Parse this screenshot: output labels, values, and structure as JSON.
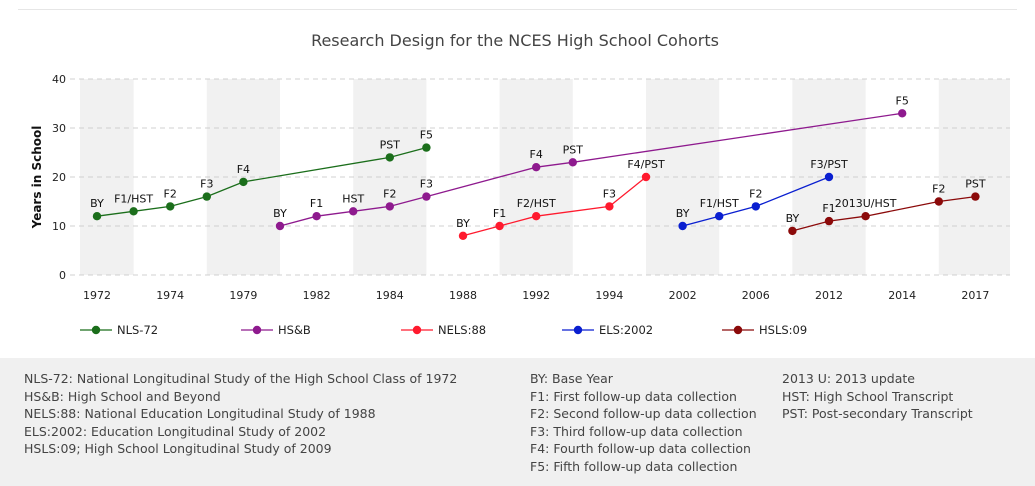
{
  "chart_data": {
    "type": "line",
    "title": "Research Design for the NCES High School Cohorts",
    "xlabel": "",
    "ylabel": "Years in School",
    "ylim": [
      0,
      40
    ],
    "yticks": [
      0,
      10,
      20,
      30,
      40
    ],
    "grid": true,
    "legend_position": "bottom",
    "categories": [
      "1972",
      "1974",
      "1979",
      "1982",
      "1984",
      "1988",
      "1992",
      "1994",
      "2002",
      "2006",
      "2012",
      "2014",
      "2017"
    ],
    "x_note": "x values are positions on the categorical axis (category index, half steps between ticks)",
    "series": [
      {
        "name": "NLS-72",
        "color": "#1b6e1b",
        "points": [
          {
            "x": 0,
            "y": 12,
            "label": "BY"
          },
          {
            "x": 0.5,
            "y": 13,
            "label": "F1/HST"
          },
          {
            "x": 1,
            "y": 14,
            "label": "F2"
          },
          {
            "x": 1.5,
            "y": 16,
            "label": "F3"
          },
          {
            "x": 2,
            "y": 19,
            "label": "F4"
          },
          {
            "x": 4,
            "y": 24,
            "label": "PST"
          },
          {
            "x": 4.5,
            "y": 26,
            "label": "F5"
          }
        ]
      },
      {
        "name": "HS&B",
        "color": "#8e1a8e",
        "points": [
          {
            "x": 2.5,
            "y": 10,
            "label": "BY"
          },
          {
            "x": 3,
            "y": 12,
            "label": "F1"
          },
          {
            "x": 3.5,
            "y": 13,
            "label": "HST"
          },
          {
            "x": 4,
            "y": 14,
            "label": "F2"
          },
          {
            "x": 4.5,
            "y": 16,
            "label": "F3"
          },
          {
            "x": 6,
            "y": 22,
            "label": "F4"
          },
          {
            "x": 6.5,
            "y": 23,
            "label": "PST"
          },
          {
            "x": 11,
            "y": 33,
            "label": "F5"
          }
        ]
      },
      {
        "name": "NELS:88",
        "color": "#ff1a2e",
        "points": [
          {
            "x": 5,
            "y": 8,
            "label": "BY"
          },
          {
            "x": 5.5,
            "y": 10,
            "label": "F1"
          },
          {
            "x": 6,
            "y": 12,
            "label": "F2/HST"
          },
          {
            "x": 7,
            "y": 14,
            "label": "F3"
          },
          {
            "x": 7.5,
            "y": 20,
            "label": "F4/PST"
          }
        ]
      },
      {
        "name": "ELS:2002",
        "color": "#0a1fd0",
        "points": [
          {
            "x": 8,
            "y": 10,
            "label": "BY"
          },
          {
            "x": 8.5,
            "y": 12,
            "label": "F1/HST"
          },
          {
            "x": 9,
            "y": 14,
            "label": "F2"
          },
          {
            "x": 10,
            "y": 20,
            "label": "F3/PST"
          }
        ]
      },
      {
        "name": "HSLS:09",
        "color": "#8b0a0a",
        "points": [
          {
            "x": 9.5,
            "y": 9,
            "label": "BY"
          },
          {
            "x": 10,
            "y": 11,
            "label": "F1"
          },
          {
            "x": 10.5,
            "y": 12,
            "label": "2013U/HST"
          },
          {
            "x": 11.5,
            "y": 15,
            "label": "F2"
          },
          {
            "x": 12,
            "y": 16,
            "label": "PST"
          }
        ]
      }
    ]
  },
  "notes": {
    "col1": [
      "NLS-72: National Longitudinal Study of the High School Class of 1972",
      "HS&B: High School and Beyond",
      "NELS:88: National Education Longitudinal Study of 1988",
      "ELS:2002: Education Longitudinal Study of 2002",
      "HSLS:09; High School Longitudinal Study of 2009"
    ],
    "col2": [
      "BY: Base Year",
      "F1: First follow-up data collection",
      "F2: Second follow-up data collection",
      "F3: Third follow-up data collection",
      "F4: Fourth follow-up data collection",
      "F5: Fifth follow-up data collection"
    ],
    "col3": [
      "2013 U: 2013 update",
      "HST: High School Transcript",
      "PST: Post-secondary Transcript"
    ]
  }
}
